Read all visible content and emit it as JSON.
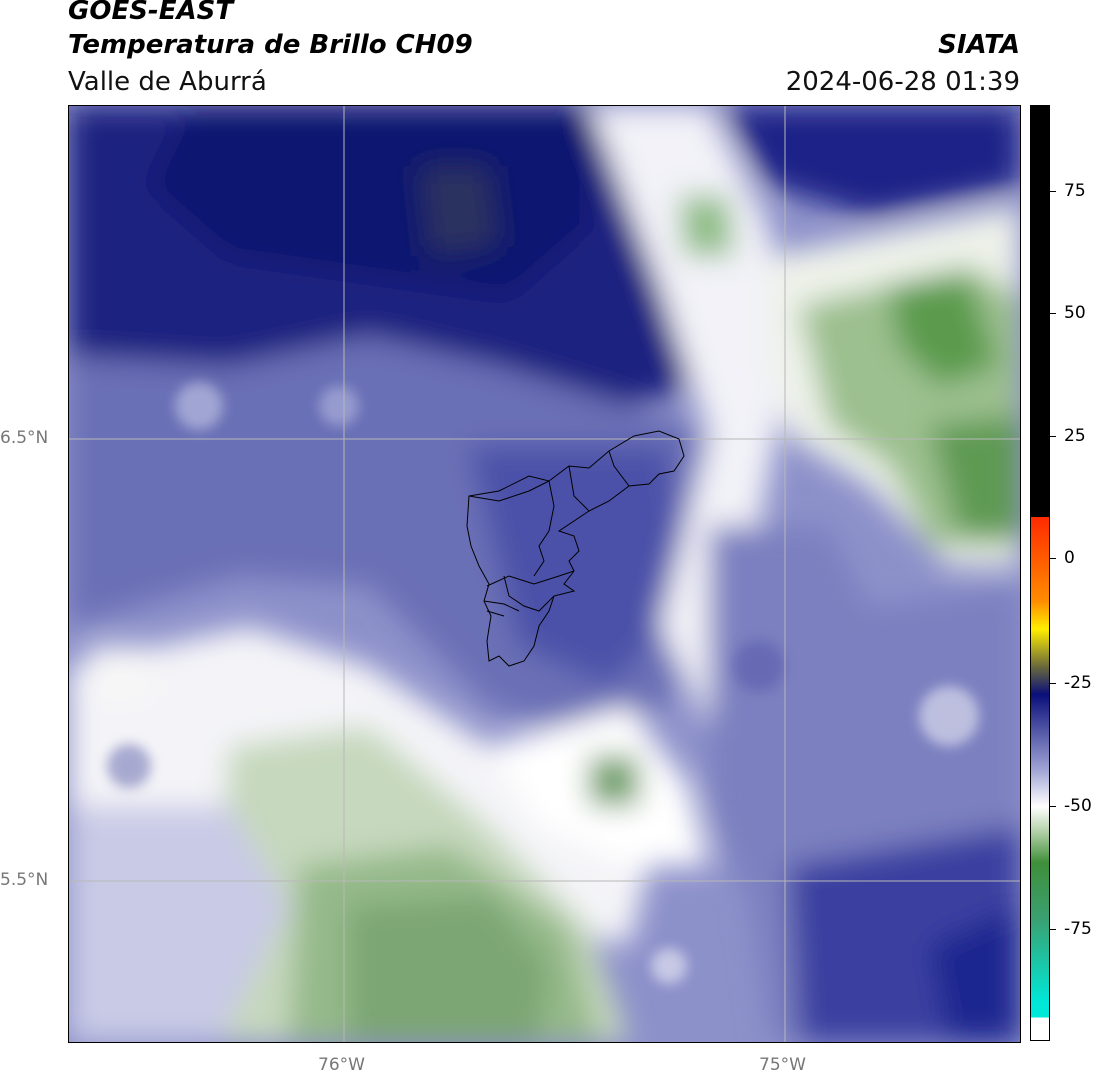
{
  "header": {
    "title_line1": "GOES-EAST",
    "title_line2": "Temperatura de Brillo CH09",
    "organization": "SIATA",
    "region": "Valle de Aburrá",
    "timestamp": "2024-06-28 01:39"
  },
  "map": {
    "lat_labels": [
      "6.5°N",
      "5.5°N"
    ],
    "lon_labels": [
      "76°W",
      "75°W"
    ],
    "gridlines": true
  },
  "colorbar": {
    "tick_labels": [
      "75",
      "50",
      "25",
      "0",
      "-25",
      "-50",
      "-75"
    ],
    "colors": {
      "black": "#000000",
      "red": "#ff2a00",
      "orange": "#ff8c00",
      "yellow": "#ffee00",
      "navy": "#0a0f7a",
      "lavender": "#9ea2d4",
      "white": "#ffffff",
      "green": "#3f8f3a",
      "cyan": "#00e8d8"
    }
  }
}
